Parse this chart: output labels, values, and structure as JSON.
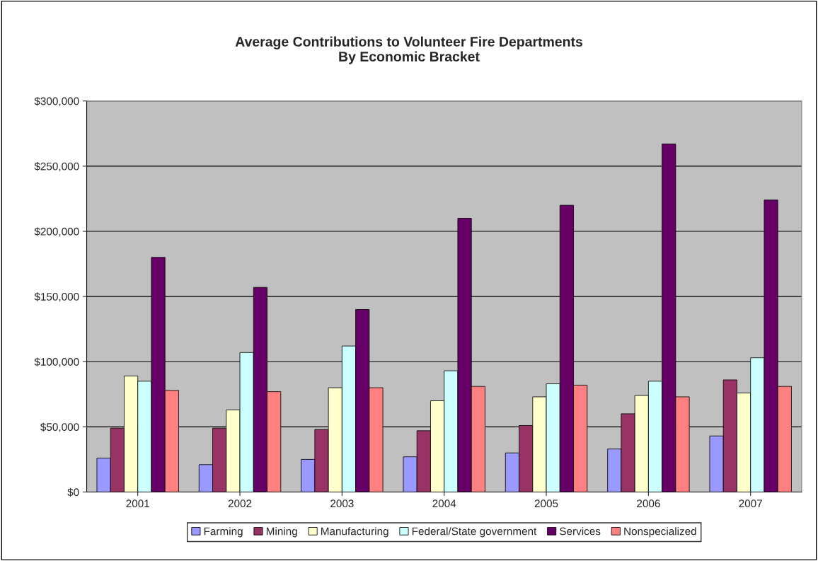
{
  "chart_data": {
    "type": "bar",
    "title": "Average Contributions to Volunteer Fire Departments\nBy Economic Bracket",
    "categories": [
      "2001",
      "2002",
      "2003",
      "2004",
      "2005",
      "2006",
      "2007"
    ],
    "series": [
      {
        "name": "Farming",
        "color": "#9999ff",
        "values": [
          26000,
          21000,
          25000,
          27000,
          30000,
          33000,
          43000
        ]
      },
      {
        "name": "Mining",
        "color": "#993366",
        "values": [
          49000,
          49000,
          48000,
          47000,
          51000,
          60000,
          86000
        ]
      },
      {
        "name": "Manufacturing",
        "color": "#ffffcc",
        "values": [
          89000,
          63000,
          80000,
          70000,
          73000,
          74000,
          76000
        ]
      },
      {
        "name": "Federal/State government",
        "color": "#ccffff",
        "values": [
          85000,
          107000,
          112000,
          93000,
          83000,
          85000,
          103000
        ]
      },
      {
        "name": "Services",
        "color": "#660066",
        "values": [
          180000,
          157000,
          140000,
          210000,
          220000,
          267000,
          224000
        ]
      },
      {
        "name": "Nonspecialized",
        "color": "#ff8080",
        "values": [
          78000,
          77000,
          80000,
          81000,
          82000,
          73000,
          81000
        ]
      }
    ],
    "ylim": [
      0,
      300000
    ],
    "yticks": [
      {
        "value": 0,
        "label": "$0"
      },
      {
        "value": 50000,
        "label": "$50,000"
      },
      {
        "value": 100000,
        "label": "$100,000"
      },
      {
        "value": 150000,
        "label": "$150,000"
      },
      {
        "value": 200000,
        "label": "$200,000"
      },
      {
        "value": 250000,
        "label": "$250,000"
      },
      {
        "value": 300000,
        "label": "$300,000"
      }
    ],
    "grid": "y",
    "legend": "bottom"
  }
}
